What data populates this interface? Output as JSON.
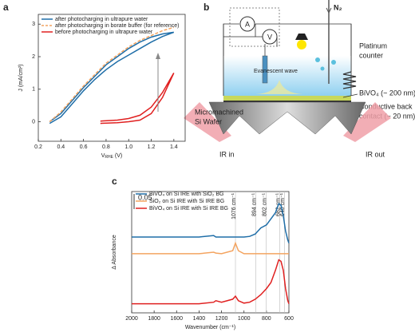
{
  "chart_data": [
    {
      "type": "line",
      "title": "a",
      "y_label": "J (mA/cm²)",
      "x_label": {
        "main": "V",
        "sub": "RHE",
        "unit": " (V)"
      },
      "xlim": [
        0.2,
        1.5
      ],
      "ylim": [
        -0.6,
        3.3
      ],
      "xticks": [
        0.2,
        0.4,
        0.6,
        0.8,
        {
          "value": 1,
          "label": "1.0"
        },
        1.2,
        1.4
      ],
      "yticks": [
        0,
        1,
        2,
        3
      ],
      "series": [
        {
          "name": "after photocharging in ultrapure water",
          "color": "#1f6ea8",
          "dashed": false,
          "x": [
            0.3,
            0.4,
            0.5,
            0.6,
            0.7,
            0.8,
            0.9,
            1.0,
            1.1,
            1.2,
            1.3,
            1.4,
            1.3,
            1.2,
            1.1,
            1.0,
            0.9,
            0.8,
            0.7,
            0.6,
            0.5,
            0.4,
            0.3
          ],
          "values": [
            -0.05,
            0.15,
            0.55,
            0.95,
            1.3,
            1.6,
            1.85,
            2.05,
            2.25,
            2.45,
            2.62,
            2.75,
            2.7,
            2.6,
            2.45,
            2.25,
            2.0,
            1.75,
            1.4,
            1.05,
            0.65,
            0.25,
            0.0
          ]
        },
        {
          "name": "after photocharging in borate buffer (for reference)",
          "color": "#f4a460",
          "dashed": true,
          "x": [
            0.3,
            0.4,
            0.5,
            0.6,
            0.7,
            0.8,
            0.9,
            1.0,
            1.1,
            1.2,
            1.3,
            1.4
          ],
          "values": [
            0.0,
            0.3,
            0.7,
            1.1,
            1.45,
            1.8,
            2.05,
            2.3,
            2.5,
            2.65,
            2.8,
            2.9
          ]
        },
        {
          "name": "before photocharging in ultrapure water",
          "color": "#e02020",
          "dashed": false,
          "x": [
            0.75,
            0.9,
            1.0,
            1.1,
            1.2,
            1.3,
            1.4,
            1.3,
            1.2,
            1.1,
            1.0,
            0.9,
            0.75
          ],
          "values": [
            -0.05,
            -0.03,
            0.0,
            0.05,
            0.25,
            0.75,
            1.5,
            0.9,
            0.45,
            0.2,
            0.1,
            0.05,
            0.02
          ]
        }
      ]
    },
    {
      "type": "line",
      "title": "c",
      "y_label": "Δ Absorbance",
      "x_label": "Wavenumber (cm⁻¹)",
      "xlim": [
        2000,
        600
      ],
      "ylim": [
        0,
        0.4
      ],
      "xticks": [
        2000,
        1800,
        1600,
        1400,
        1200,
        1000,
        800,
        600
      ],
      "scale_bar": 0.05,
      "vlines": [
        {
          "value": 1076,
          "label": "1076 cm⁻¹"
        },
        {
          "value": 894,
          "label": "894 cm⁻¹"
        },
        {
          "value": 802,
          "label": "802 cm⁻¹"
        },
        {
          "value": 682,
          "label": "682 cm⁻¹"
        },
        {
          "value": 640,
          "label": "640 cm⁻¹"
        }
      ],
      "x": [
        2000,
        1800,
        1600,
        1400,
        1270,
        1250,
        1200,
        1100,
        1076,
        1050,
        1000,
        950,
        900,
        850,
        800,
        760,
        720,
        690,
        670,
        650,
        630,
        610,
        600
      ],
      "series": [
        {
          "name": "BiVO₄ on Si IRE with SiO₂ BG",
          "color": "#1f6ea8",
          "values": [
            0.25,
            0.25,
            0.25,
            0.25,
            0.255,
            0.25,
            0.25,
            0.25,
            0.25,
            0.25,
            0.25,
            0.252,
            0.26,
            0.28,
            0.29,
            0.31,
            0.33,
            0.36,
            0.355,
            0.32,
            0.27,
            0.24,
            0.23
          ]
        },
        {
          "name": "SiO₂ on Si IRE with Si IRE BG",
          "color": "#f4a460",
          "values": [
            0.195,
            0.195,
            0.195,
            0.195,
            0.2,
            0.197,
            0.195,
            0.205,
            0.23,
            0.205,
            0.195,
            0.195,
            0.195,
            0.195,
            0.195,
            0.195,
            0.195,
            0.195,
            0.195,
            0.195,
            0.195,
            0.195,
            0.195
          ]
        },
        {
          "name": "BiVO₄ on Si IRE with Si IRE BG",
          "color": "#e02020",
          "values": [
            0.03,
            0.03,
            0.03,
            0.03,
            0.035,
            0.04,
            0.035,
            0.045,
            0.055,
            0.04,
            0.032,
            0.035,
            0.045,
            0.06,
            0.08,
            0.1,
            0.14,
            0.175,
            0.17,
            0.14,
            0.08,
            0.04,
            0.03
          ]
        }
      ]
    }
  ],
  "diagram": {
    "label": "b",
    "ammeter": "A",
    "voltmeter": "V",
    "gas": "N₂",
    "counter": [
      "Platinum",
      "counter"
    ],
    "wave": "Evanescent wave",
    "layer": "BiVO₄ (~ 200 nm)",
    "contact": [
      "Conductive back",
      "contact (~ 20 nm)"
    ],
    "wafer": [
      "Micromachined",
      "Si Wafer"
    ],
    "ir_in": "IR in",
    "ir_out": "IR out"
  }
}
